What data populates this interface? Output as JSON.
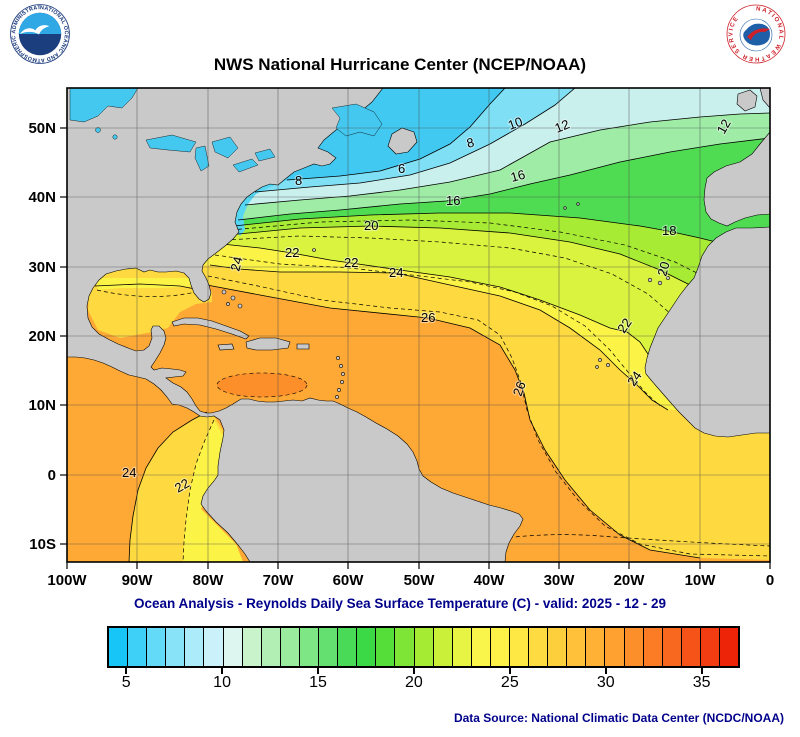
{
  "header": {
    "title": "NWS National Hurricane Center (NCEP/NOAA)",
    "noaa_ring_text": "NATIONAL OCEANIC AND ATMOSPHERIC ADMINISTRATION - U.S. DEPARTMENT OF COMMERCE",
    "nws_ring_text": "NATIONAL WEATHER SERVICE"
  },
  "map": {
    "y_ticks": [
      "50N",
      "40N",
      "30N",
      "20N",
      "10N",
      "0",
      "10S"
    ],
    "x_ticks": [
      "100W",
      "90W",
      "80W",
      "70W",
      "60W",
      "50W",
      "40W",
      "30W",
      "20W",
      "10W",
      "0"
    ],
    "contour_labels": [
      "8",
      "6",
      "8",
      "10",
      "12",
      "12",
      "16",
      "16",
      "20",
      "18",
      "22",
      "22",
      "24",
      "24",
      "26",
      "20",
      "22",
      "24",
      "26",
      "24",
      "22"
    ]
  },
  "caption": "Ocean Analysis - Reynolds Daily Sea Surface Temperature (C) - valid: 2025 - 12 - 29",
  "colorbar": {
    "tick_labels": [
      "5",
      "10",
      "15",
      "20",
      "25",
      "30",
      "35"
    ],
    "palette": [
      "#17C5F6",
      "#3ED0F7",
      "#63DAF8",
      "#88E3F9",
      "#ABEBFA",
      "#CBF2FB",
      "#DEF6F0",
      "#C9F3CB",
      "#B2EFB4",
      "#9AEB9D",
      "#7FE686",
      "#63E06F",
      "#49DB58",
      "#3CD947",
      "#55DE3A",
      "#7EE436",
      "#A5EA33",
      "#CBF03A",
      "#E8F443",
      "#F9F54A",
      "#FEF248",
      "#FEE844",
      "#FEDC41",
      "#FECF3D",
      "#FEC139",
      "#FEB135",
      "#FEA130",
      "#FD8F2B",
      "#FB7C25",
      "#F8681F",
      "#F55318",
      "#F23C11",
      "#EE2409"
    ]
  },
  "footer": {
    "source": "Data Source: National Climatic Data Center (NCDC/NOAA)"
  },
  "chart_data": {
    "type": "heatmap",
    "title": "NWS National Hurricane Center (NCEP/NOAA)",
    "subtitle": "Ocean Analysis - Reynolds Daily Sea Surface Temperature (C) - valid: 2025 - 12 - 29",
    "units": "C",
    "x_tick_labels": [
      "100W",
      "90W",
      "80W",
      "70W",
      "60W",
      "50W",
      "40W",
      "30W",
      "20W",
      "10W",
      "0"
    ],
    "y_tick_labels": [
      "50N",
      "40N",
      "30N",
      "20N",
      "10N",
      "0",
      "10S"
    ],
    "colorbar_ticks": [
      5,
      10,
      15,
      20,
      25,
      30,
      35
    ],
    "labeled_contour_levels": [
      6,
      8,
      10,
      12,
      16,
      18,
      20,
      22,
      24,
      26
    ]
  }
}
